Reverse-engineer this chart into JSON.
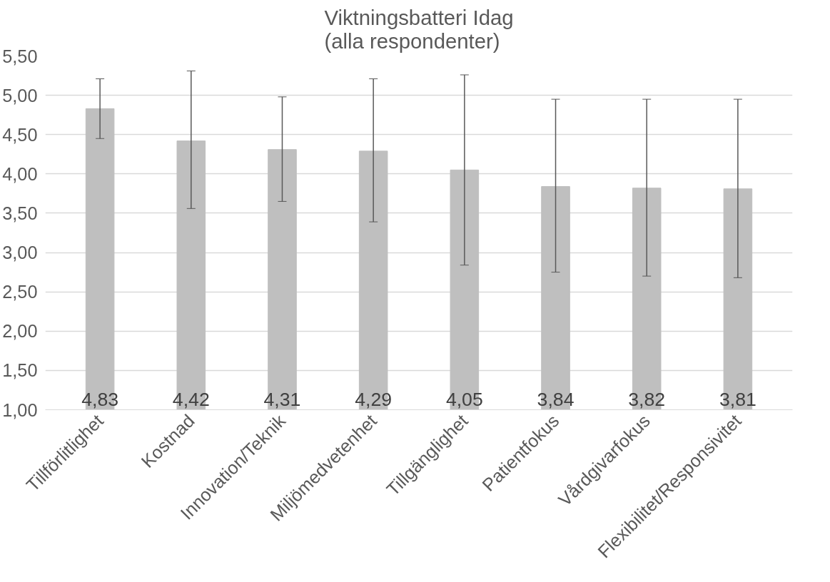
{
  "chart_data": {
    "type": "bar",
    "title": "Viktningsbatteri Idag\n(alla respondenter)",
    "categories": [
      "Tillförlitlighet",
      "Kostnad",
      "Innovation/Teknik",
      "Miljömedvetenhet",
      "Tillgänglighet",
      "Patientfokus",
      "Vårdgivarfokus",
      "Flexibilitet/Responsivitet"
    ],
    "values": [
      4.83,
      4.42,
      4.31,
      4.29,
      4.05,
      3.84,
      3.82,
      3.81
    ],
    "value_labels": [
      "4,83",
      "4,42",
      "4,31",
      "4,29",
      "4,05",
      "3,84",
      "3,82",
      "3,81"
    ],
    "errors": [
      [
        4.45,
        5.21
      ],
      [
        3.56,
        5.31
      ],
      [
        3.65,
        4.98
      ],
      [
        3.39,
        5.21
      ],
      [
        2.84,
        5.26
      ],
      [
        2.75,
        4.95
      ],
      [
        2.7,
        4.95
      ],
      [
        2.68,
        4.95
      ]
    ],
    "color": "#bfbfbf",
    "ylim": [
      1.0,
      5.5
    ],
    "yticks": [
      {
        "value": 1.0,
        "label": "1,00"
      },
      {
        "value": 1.5,
        "label": "1,50"
      },
      {
        "value": 2.0,
        "label": "2,00"
      },
      {
        "value": 2.5,
        "label": "2,50"
      },
      {
        "value": 3.0,
        "label": "3,00"
      },
      {
        "value": 3.5,
        "label": "3,50"
      },
      {
        "value": 4.0,
        "label": "4,00"
      },
      {
        "value": 4.5,
        "label": "4,50"
      },
      {
        "value": 5.0,
        "label": "5,00"
      },
      {
        "value": 5.5,
        "label": "5,50"
      }
    ],
    "grid": "y"
  }
}
